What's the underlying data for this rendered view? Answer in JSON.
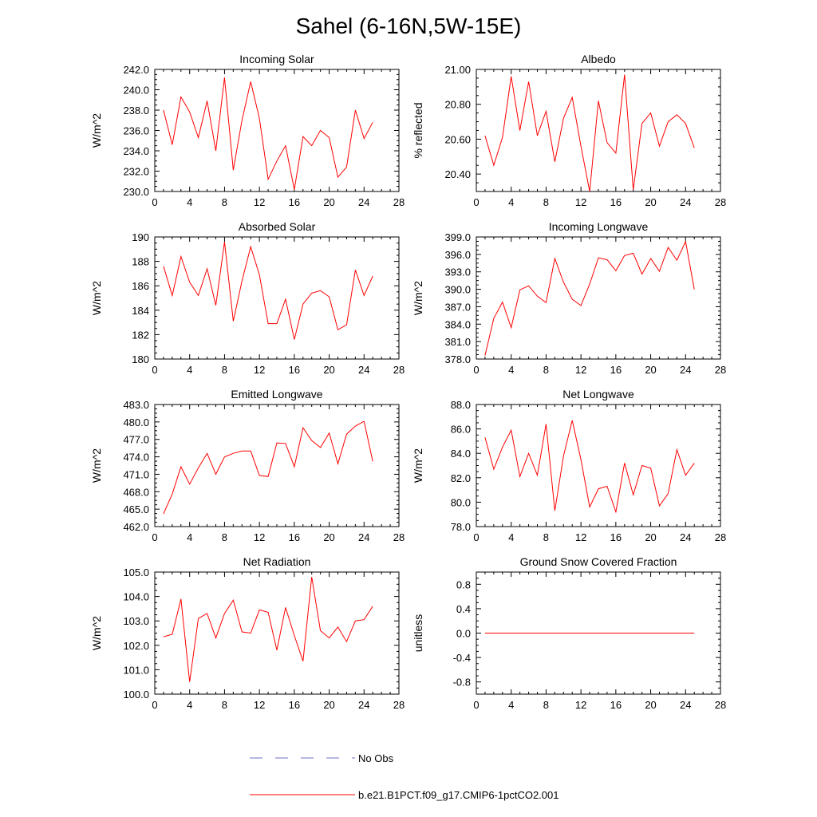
{
  "title": "Sahel (6-16N,5W-15E)",
  "colors": {
    "model": "#ff0000",
    "obs": "#6f6fc8",
    "axis": "#000000"
  },
  "legend": {
    "obs_label": "No Obs",
    "model_label": "b.e21.B1PCT.f09_g17.CMIP6-1pctCO2.001"
  },
  "chart_data": [
    {
      "type": "line",
      "title": "Incoming Solar",
      "xlabel": "",
      "ylabel": "W/m^2",
      "xlim": [
        0,
        28
      ],
      "ylim": [
        230,
        242
      ],
      "decimals": 1,
      "yticks": [
        230,
        232,
        234,
        236,
        238,
        240,
        242
      ],
      "xticks": [
        0,
        4,
        8,
        12,
        16,
        20,
        24,
        28
      ],
      "series": [
        {
          "x": [
            1,
            2,
            3,
            4,
            5,
            6,
            7,
            8,
            9,
            10,
            11,
            12,
            13,
            14,
            15,
            16,
            17,
            18,
            19,
            20,
            21,
            22,
            23,
            24,
            25
          ],
          "values": [
            238.0,
            234.6,
            239.3,
            237.8,
            235.3,
            238.9,
            234.0,
            241.2,
            232.1,
            237.0,
            240.8,
            237.2,
            231.2,
            233.0,
            234.5,
            230.2,
            235.4,
            234.5,
            236.0,
            235.3,
            231.4,
            232.4,
            238.0,
            235.2,
            236.8
          ]
        }
      ]
    },
    {
      "type": "line",
      "title": "Albedo",
      "xlabel": "",
      "ylabel": "% reflected",
      "xlim": [
        0,
        28
      ],
      "ylim": [
        20.3,
        21.0
      ],
      "decimals": 2,
      "yticks": [
        20.4,
        20.6,
        20.8,
        21.0
      ],
      "xticks": [
        0,
        4,
        8,
        12,
        16,
        20,
        24,
        28
      ],
      "series": [
        {
          "x": [
            1,
            2,
            3,
            4,
            5,
            6,
            7,
            8,
            9,
            10,
            11,
            12,
            13,
            14,
            15,
            16,
            17,
            18,
            19,
            20,
            21,
            22,
            23,
            24,
            25
          ],
          "values": [
            20.62,
            20.45,
            20.61,
            20.96,
            20.65,
            20.93,
            20.62,
            20.76,
            20.47,
            20.72,
            20.84,
            20.56,
            20.3,
            20.82,
            20.58,
            20.52,
            20.97,
            20.31,
            20.69,
            20.75,
            20.56,
            20.7,
            20.74,
            20.69,
            20.55
          ]
        }
      ]
    },
    {
      "type": "line",
      "title": "Absorbed Solar",
      "xlabel": "",
      "ylabel": "W/m^2",
      "xlim": [
        0,
        28
      ],
      "ylim": [
        180,
        190
      ],
      "decimals": 0,
      "yticks": [
        180,
        182,
        184,
        186,
        188,
        190
      ],
      "xticks": [
        0,
        4,
        8,
        12,
        16,
        20,
        24,
        28
      ],
      "series": [
        {
          "x": [
            1,
            2,
            3,
            4,
            5,
            6,
            7,
            8,
            9,
            10,
            11,
            12,
            13,
            14,
            15,
            16,
            17,
            18,
            19,
            20,
            21,
            22,
            23,
            24,
            25
          ],
          "values": [
            187.6,
            185.2,
            188.4,
            186.3,
            185.2,
            187.4,
            184.4,
            189.6,
            183.1,
            186.4,
            189.2,
            186.9,
            182.9,
            182.9,
            184.9,
            181.6,
            184.5,
            185.4,
            185.6,
            185.1,
            182.4,
            182.8,
            187.3,
            185.2,
            186.8
          ]
        }
      ]
    },
    {
      "type": "line",
      "title": "Incoming Longwave",
      "xlabel": "",
      "ylabel": "W/m^2",
      "xlim": [
        0,
        28
      ],
      "ylim": [
        378,
        399
      ],
      "decimals": 1,
      "yticks": [
        378,
        381,
        384,
        387,
        390,
        393,
        396,
        399
      ],
      "xticks": [
        0,
        4,
        8,
        12,
        16,
        20,
        24,
        28
      ],
      "series": [
        {
          "x": [
            1,
            2,
            3,
            4,
            5,
            6,
            7,
            8,
            9,
            10,
            11,
            12,
            13,
            14,
            15,
            16,
            17,
            18,
            19,
            20,
            21,
            22,
            23,
            24,
            25
          ],
          "values": [
            378.6,
            385.0,
            387.8,
            383.4,
            389.9,
            390.6,
            388.8,
            387.7,
            395.3,
            391.2,
            388.3,
            387.2,
            390.9,
            395.4,
            395.1,
            393.2,
            395.8,
            396.2,
            392.6,
            395.3,
            393.1,
            397.2,
            395.0,
            398.2,
            390.0
          ]
        }
      ]
    },
    {
      "type": "line",
      "title": "Emitted Longwave",
      "xlabel": "",
      "ylabel": "W/m^2",
      "xlim": [
        0,
        28
      ],
      "ylim": [
        462,
        483
      ],
      "decimals": 1,
      "yticks": [
        462,
        465,
        468,
        471,
        474,
        477,
        480,
        483
      ],
      "xticks": [
        0,
        4,
        8,
        12,
        16,
        20,
        24,
        28
      ],
      "series": [
        {
          "x": [
            1,
            2,
            3,
            4,
            5,
            6,
            7,
            8,
            9,
            10,
            11,
            12,
            13,
            14,
            15,
            16,
            17,
            18,
            19,
            20,
            21,
            22,
            23,
            24,
            25
          ],
          "values": [
            464.2,
            467.6,
            472.3,
            469.3,
            472.1,
            474.6,
            471.0,
            474.0,
            474.6,
            475.0,
            475.0,
            470.8,
            470.6,
            476.4,
            476.3,
            472.3,
            479.0,
            476.8,
            475.6,
            478.1,
            472.8,
            477.9,
            479.3,
            480.1,
            473.2
          ]
        }
      ]
    },
    {
      "type": "line",
      "title": "Net Longwave",
      "xlabel": "",
      "ylabel": "W/m^2",
      "xlim": [
        0,
        28
      ],
      "ylim": [
        78,
        88
      ],
      "decimals": 1,
      "yticks": [
        78,
        80,
        82,
        84,
        86,
        88
      ],
      "xticks": [
        0,
        4,
        8,
        12,
        16,
        20,
        24,
        28
      ],
      "series": [
        {
          "x": [
            1,
            2,
            3,
            4,
            5,
            6,
            7,
            8,
            9,
            10,
            11,
            12,
            13,
            14,
            15,
            16,
            17,
            18,
            19,
            20,
            21,
            22,
            23,
            24,
            25
          ],
          "values": [
            85.3,
            82.7,
            84.5,
            85.9,
            82.1,
            84.0,
            82.2,
            86.4,
            79.3,
            83.8,
            86.7,
            83.5,
            79.6,
            81.1,
            81.3,
            79.2,
            83.2,
            80.6,
            83.0,
            82.8,
            79.7,
            80.7,
            84.3,
            82.2,
            83.2
          ]
        }
      ]
    },
    {
      "type": "line",
      "title": "Net Radiation",
      "xlabel": "",
      "ylabel": "W/m^2",
      "xlim": [
        0,
        28
      ],
      "ylim": [
        100,
        105
      ],
      "decimals": 1,
      "yticks": [
        100,
        101,
        102,
        103,
        104,
        105
      ],
      "xticks": [
        0,
        4,
        8,
        12,
        16,
        20,
        24,
        28
      ],
      "series": [
        {
          "x": [
            1,
            2,
            3,
            4,
            5,
            6,
            7,
            8,
            9,
            10,
            11,
            12,
            13,
            14,
            15,
            16,
            17,
            18,
            19,
            20,
            21,
            22,
            23,
            24,
            25
          ],
          "values": [
            102.35,
            102.45,
            103.9,
            100.5,
            103.1,
            103.3,
            102.3,
            103.3,
            103.85,
            102.55,
            102.5,
            103.45,
            103.35,
            101.8,
            103.55,
            102.4,
            101.35,
            104.8,
            102.6,
            102.3,
            102.75,
            102.15,
            103.0,
            103.05,
            103.6
          ]
        }
      ]
    },
    {
      "type": "line",
      "title": "Ground Snow Covered Fraction",
      "xlabel": "",
      "ylabel": "unitless",
      "xlim": [
        0,
        28
      ],
      "ylim": [
        -1.0,
        1.0
      ],
      "decimals": 1,
      "yticks": [
        -0.8,
        -0.4,
        0.0,
        0.4,
        0.8
      ],
      "xticks": [
        0,
        4,
        8,
        12,
        16,
        20,
        24,
        28
      ],
      "series": [
        {
          "x": [
            1,
            2,
            3,
            4,
            5,
            6,
            7,
            8,
            9,
            10,
            11,
            12,
            13,
            14,
            15,
            16,
            17,
            18,
            19,
            20,
            21,
            22,
            23,
            24,
            25
          ],
          "values": [
            0,
            0,
            0,
            0,
            0,
            0,
            0,
            0,
            0,
            0,
            0,
            0,
            0,
            0,
            0,
            0,
            0,
            0,
            0,
            0,
            0,
            0,
            0,
            0,
            0
          ]
        }
      ]
    }
  ]
}
